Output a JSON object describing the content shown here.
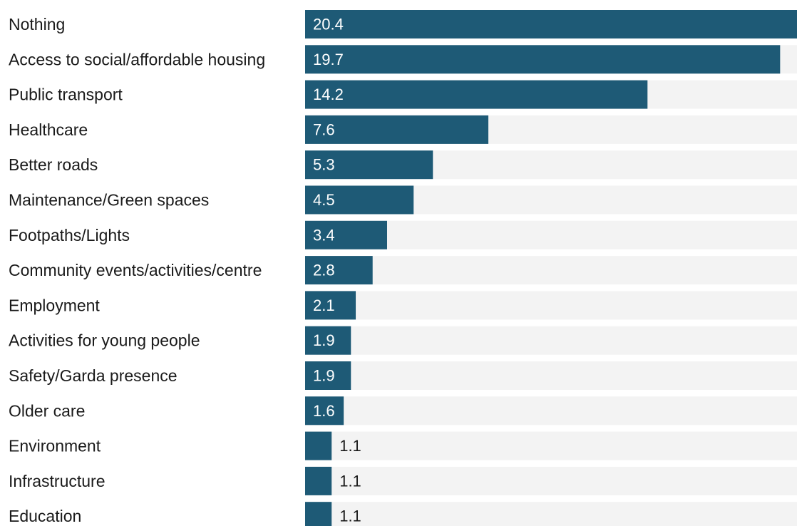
{
  "chart_data": {
    "type": "bar",
    "orientation": "horizontal",
    "categories": [
      "Nothing",
      "Access to social/affordable housing",
      "Public transport",
      "Healthcare",
      "Better roads",
      "Maintenance/Green spaces",
      "Footpaths/Lights",
      "Community events/activities/centre",
      "Employment",
      "Activities for young people",
      "Safety/Garda presence",
      "Older care",
      "Environment",
      "Infrastructure",
      "Education"
    ],
    "values": [
      20.4,
      19.7,
      14.2,
      7.6,
      5.3,
      4.5,
      3.4,
      2.8,
      2.1,
      1.9,
      1.9,
      1.6,
      1.1,
      1.1,
      1.1
    ],
    "value_labels": [
      "20.4",
      "19.7",
      "14.2",
      "7.6",
      "5.3",
      "4.5",
      "3.4",
      "2.8",
      "2.1",
      "1.9",
      "1.9",
      "1.6",
      "1.1",
      "1.1",
      "1.1"
    ],
    "xlim": [
      0,
      20.4
    ],
    "grid": false,
    "legend": "none",
    "colors": {
      "bar": "#1e5a76",
      "track": "#f3f3f3",
      "label_inside": "#ffffff",
      "label_outside": "#1a1a1a",
      "category_text": "#1a1a1a"
    }
  }
}
